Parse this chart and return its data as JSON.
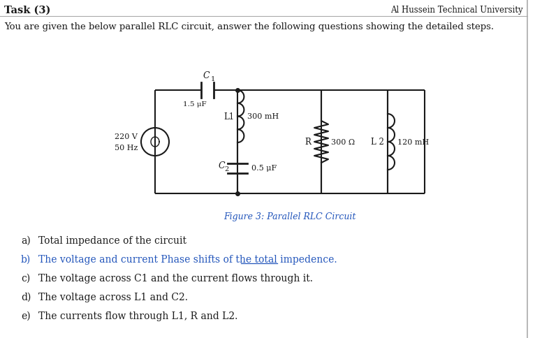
{
  "title_left": "Task (3)",
  "title_right": "Al Hussein Technical University",
  "intro_text": "You are given the below parallel RLC circuit, answer the following questions showing the detailed steps.",
  "figure_caption": "Figure 3: Parallel RLC Circuit",
  "questions": [
    [
      "a)",
      "Total impedance of the circuit",
      false
    ],
    [
      "b)",
      "The voltage and current Phase shifts of the total impedence.",
      true
    ],
    [
      "c)",
      "The voltage across C1 and the current flows through it.",
      false
    ],
    [
      "d)",
      "The voltage across L1 and C2.",
      false
    ],
    [
      "e)",
      "The currents flow through L1, R and L2.",
      false
    ]
  ],
  "page_color": "#ffffff",
  "text_color": "#1a1a1a",
  "blue_color": "#2255bb",
  "gray_color": "#aaaaaa",
  "circuit": {
    "source_label_1": "220 V",
    "source_label_2": "50 Hz",
    "C1_label": "C",
    "C1_sub": "1",
    "C1_val": "1.5 μF",
    "L1_label": "L1",
    "L1_val": "300 mH",
    "C2_label": "C",
    "C2_sub": "2",
    "C2_val": "0.5 μF",
    "R_label": "R",
    "R_val": "300 Ω",
    "L2_label": "L 2",
    "L2_val": "120 mH"
  }
}
